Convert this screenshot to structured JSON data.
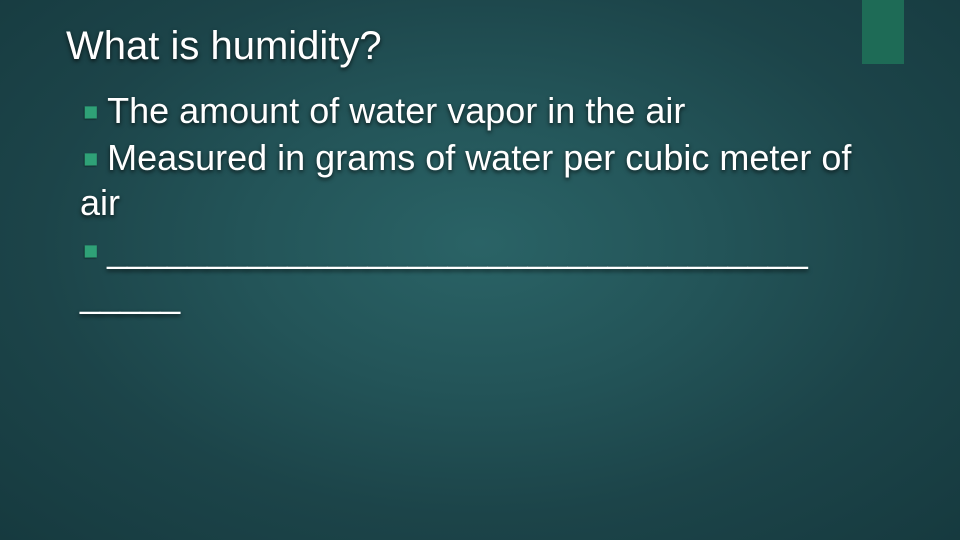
{
  "slide": {
    "background_gradient": [
      "#2a6366",
      "#235458",
      "#1c4449",
      "#163a3f"
    ],
    "accent_bar_color": "#1e6b56",
    "text_color": "#ffffff",
    "bullet_color": "#2fa177",
    "title": "What is humidity?",
    "title_fontsize": 40,
    "body_fontsize": 36,
    "bullets": [
      "The amount of water vapor in the air",
      "Measured in grams of water per cubic meter of air",
      "___________________________________ _____"
    ]
  }
}
